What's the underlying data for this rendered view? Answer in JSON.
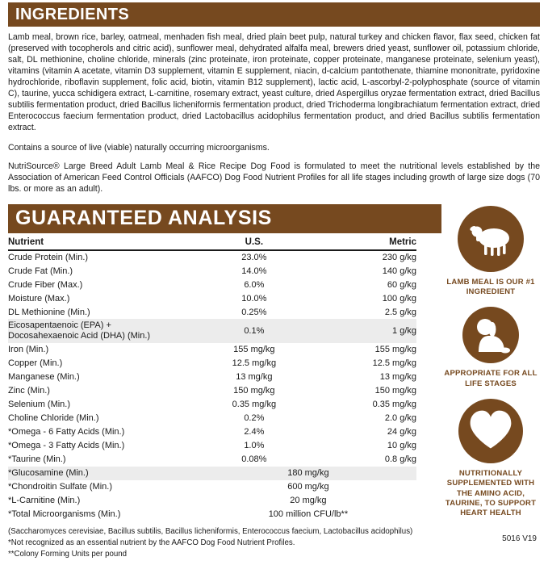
{
  "brand_colors": {
    "brown": "#76491f"
  },
  "ingredients_section": {
    "title": "INGREDIENTS",
    "body": "Lamb meal, brown rice, barley, oatmeal, menhaden fish meal, dried plain beet pulp, natural turkey and chicken flavor, flax seed, chicken fat (preserved with tocopherols and citric acid), sunflower meal, dehydrated alfalfa meal, brewers dried yeast, sunflower oil, potassium chloride, salt, DL methionine, choline chloride, minerals (zinc proteinate, iron proteinate, copper proteinate, manganese proteinate, selenium yeast), vitamins (vitamin A acetate, vitamin D3 supplement, vitamin E supplement, niacin, d-calcium pantothenate, thiamine mononitrate, pyridoxine hydrochloride, riboflavin supplement, folic acid, biotin, vitamin B12 supplement), lactic acid, L-ascorbyl-2-polyphosphate (source of vitamin C), taurine, yucca schidigera extract, L-carnitine, rosemary extract, yeast culture, dried Aspergillus oryzae fermentation extract, dried Bacillus subtilis fermentation product, dried Bacillus licheniformis fermentation product, dried Trichoderma longibrachiatum fermentation extract, dried Enterococcus faecium fermentation product, dried Lactobacillus acidophilus fermentation product, and dried Bacillus subtilis fermentation extract.",
    "microorganisms_note": "Contains a source of live (viable) naturally occurring microorganisms.",
    "aafco_statement": "NutriSource® Large Breed Adult Lamb Meal & Rice Recipe Dog Food is formulated to meet the nutritional levels established by the Association of American Feed Control Officials (AAFCO) Dog Food Nutrient Profiles for all life stages including growth of large size dogs (70 lbs. or more as an adult)."
  },
  "analysis_section": {
    "title": "GUARANTEED ANALYSIS",
    "columns": [
      "Nutrient",
      "U.S.",
      "Metric"
    ],
    "rows": [
      {
        "nutrient": "Crude Protein (Min.)",
        "us": "23.0%",
        "metric": "230 g/kg"
      },
      {
        "nutrient": "Crude Fat (Min.)",
        "us": "14.0%",
        "metric": "140 g/kg"
      },
      {
        "nutrient": "Crude Fiber (Max.)",
        "us": "6.0%",
        "metric": "60 g/kg"
      },
      {
        "nutrient": "Moisture (Max.)",
        "us": "10.0%",
        "metric": "100 g/kg"
      },
      {
        "nutrient": "DL Methionine (Min.)",
        "us": "0.25%",
        "metric": "2.5 g/kg"
      },
      {
        "nutrient": "Eicosapentaenoic (EPA) +\nDocosahexaenoic Acid (DHA) (Min.)",
        "us": "0.1%",
        "metric": "1 g/kg",
        "shaded": true
      },
      {
        "nutrient": "Iron (Min.)",
        "us": "155 mg/kg",
        "metric": "155 mg/kg"
      },
      {
        "nutrient": "Copper (Min.)",
        "us": "12.5 mg/kg",
        "metric": "12.5 mg/kg"
      },
      {
        "nutrient": "Manganese (Min.)",
        "us": "13 mg/kg",
        "metric": "13 mg/kg"
      },
      {
        "nutrient": "Zinc (Min.)",
        "us": "150 mg/kg",
        "metric": "150 mg/kg"
      },
      {
        "nutrient": "Selenium (Min.)",
        "us": "0.35 mg/kg",
        "metric": "0.35 mg/kg"
      },
      {
        "nutrient": "Choline Chloride (Min.)",
        "us": "0.2%",
        "metric": "2.0 g/kg"
      },
      {
        "nutrient": "*Omega - 6 Fatty Acids (Min.)",
        "us": "2.4%",
        "metric": "24 g/kg"
      },
      {
        "nutrient": "*Omega - 3 Fatty Acids (Min.)",
        "us": "1.0%",
        "metric": "10 g/kg"
      },
      {
        "nutrient": "*Taurine (Min.)",
        "us": "0.08%",
        "metric": "0.8 g/kg"
      },
      {
        "nutrient": "*Glucosamine (Min.)",
        "us": "180 mg/kg",
        "metric": "",
        "span": true,
        "shaded": true
      },
      {
        "nutrient": "*Chondroitin Sulfate (Min.)",
        "us": "600 mg/kg",
        "metric": "",
        "span": true
      },
      {
        "nutrient": "*L-Carnitine (Min.)",
        "us": "20 mg/kg",
        "metric": "",
        "span": true
      },
      {
        "nutrient": "*Total Microorganisms (Min.)",
        "us": "100 million CFU/lb**",
        "metric": "",
        "span": true
      }
    ],
    "footnotes": [
      "(Saccharomyces cerevisiae, Bacillus subtilis, Bacillus licheniformis, Enterococcus faecium, Lactobacillus acidophilus)",
      "*Not recognized as an essential nutrient by the AAFCO Dog Food Nutrient Profiles.",
      "**Colony Forming Units per pound"
    ]
  },
  "badges": [
    {
      "icon": "lamb-icon",
      "label": "LAMB MEAL IS OUR #1 INGREDIENT"
    },
    {
      "icon": "puppy-icon",
      "label": "APPROPRIATE FOR ALL LIFE STAGES"
    },
    {
      "icon": "heart-icon",
      "label": "NUTRITIONALLY SUPPLEMENTED WITH THE AMINO ACID, TAURINE, TO SUPPORT HEART HEALTH"
    }
  ],
  "product_code": "5016 V19"
}
